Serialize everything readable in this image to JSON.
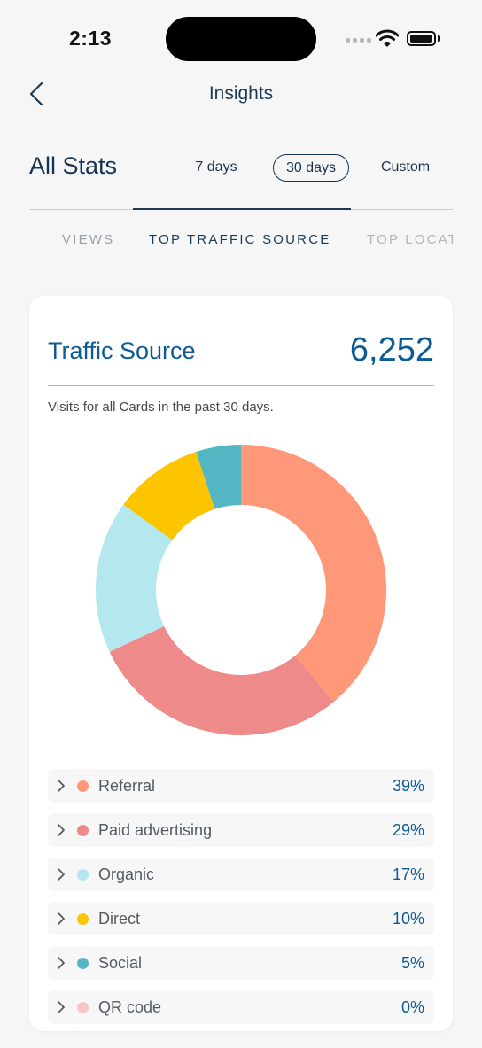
{
  "status_bar": {
    "time": "2:13"
  },
  "nav": {
    "title": "Insights"
  },
  "header": {
    "title": "All Stats",
    "ranges": [
      {
        "label": "7 days"
      },
      {
        "label": "30 days",
        "selected": true
      },
      {
        "label": "Custom"
      }
    ]
  },
  "tabs": [
    {
      "label": "VIEWS"
    },
    {
      "label": "TOP TRAFFIC SOURCE",
      "active": true
    },
    {
      "label": "TOP LOCATIONS"
    }
  ],
  "card": {
    "title": "Traffic Source",
    "total": "6,252",
    "subtitle": "Visits for all Cards in the past 30 days."
  },
  "colors": {
    "referral": "#ff9779",
    "paid": "#ee8a8a",
    "organic": "#b4e8ee",
    "direct": "#fdc500",
    "social": "#55b6c3",
    "qr": "#f6c7c7",
    "accent": "#0e5b93"
  },
  "legend": [
    {
      "label": "Referral",
      "percent": "39%",
      "color": "#ff9779"
    },
    {
      "label": "Paid advertising",
      "percent": "29%",
      "color": "#ee8a8a"
    },
    {
      "label": "Organic",
      "percent": "17%",
      "color": "#b4e8ee"
    },
    {
      "label": "Direct",
      "percent": "10%",
      "color": "#fdc500"
    },
    {
      "label": "Social",
      "percent": "5%",
      "color": "#55b6c3"
    },
    {
      "label": "QR code",
      "percent": "0%",
      "color": "#f6c7c7"
    }
  ],
  "chart_data": {
    "type": "pie",
    "categories": [
      "Referral",
      "Paid advertising",
      "Organic",
      "Direct",
      "Social",
      "QR code"
    ],
    "values": [
      39,
      29,
      17,
      10,
      5,
      0
    ],
    "colors": [
      "#ff9779",
      "#ee8a8a",
      "#b4e8ee",
      "#fdc500",
      "#55b6c3",
      "#f6c7c7"
    ],
    "total": 6252
  }
}
